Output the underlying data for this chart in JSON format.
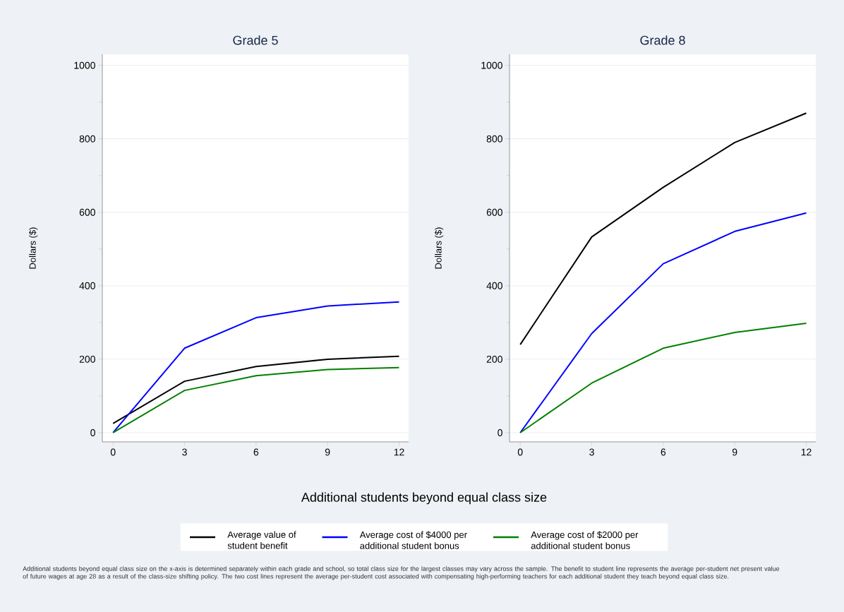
{
  "chart_data": [
    {
      "type": "line",
      "title": "Grade 5",
      "xlabel": "Additional students beyond equal class size",
      "ylabel": "Dollars ($)",
      "x": [
        0,
        3,
        6,
        9,
        12
      ],
      "series": [
        {
          "name": "Average value of student benefit",
          "color": "#000000",
          "values": [
            25,
            140,
            180,
            200,
            208
          ]
        },
        {
          "name": "Average cost of $4000 per additional student bonus",
          "color": "#0000ff",
          "values": [
            0,
            230,
            313,
            345,
            356
          ]
        },
        {
          "name": "Average cost of $2000 per additional student bonus",
          "color": "#008000",
          "values": [
            0,
            115,
            155,
            172,
            177
          ]
        }
      ],
      "xlim": [
        -0.45,
        12.4
      ],
      "ylim": [
        -25,
        1030
      ],
      "xticks": [
        0,
        3,
        6,
        9,
        12
      ],
      "yticks": [
        0,
        {
          "value": 100,
          "label": null
        },
        200,
        {
          "value": 300,
          "label": null
        },
        400,
        {
          "value": 500,
          "label": null
        },
        600,
        {
          "value": 700,
          "label": null
        },
        800,
        {
          "value": 900,
          "label": null
        },
        1000
      ],
      "grid": "y",
      "legend": "bottom",
      "marker": "none",
      "line_style": "solid",
      "annotations": [
        "Additional students beyond equal class size on the x-axis is determined separately within each grade and school, so total class size for the largest classes may vary across the sample. The benefit to student line represents the average per-student net present value of future wages at age 28 as a result of the class-size shifting policy. The two cost lines represent the average per-student cost associated with compensating high-performing teachers for each additional student they teach beyond equal class size."
      ]
    },
    {
      "type": "line",
      "title": "Grade 8",
      "ylabel": "Dollars ($)",
      "x": [
        0,
        3,
        6,
        9,
        12
      ],
      "series": [
        {
          "color": "#000000",
          "values": [
            240,
            533,
            668,
            790,
            870
          ]
        },
        {
          "color": "#0000ff",
          "values": [
            0,
            270,
            460,
            548,
            598
          ]
        },
        {
          "color": "#008000",
          "values": [
            0,
            135,
            230,
            273,
            298
          ]
        }
      ],
      "xlim": [
        -0.45,
        12.4
      ],
      "ylim": [
        -25,
        1030
      ],
      "xticks": [
        0,
        3,
        6,
        9,
        12
      ],
      "yticks": [
        0,
        {
          "value": 100,
          "label": null
        },
        200,
        {
          "value": 300,
          "label": null
        },
        400,
        {
          "value": 500,
          "label": null
        },
        600,
        {
          "value": 700,
          "label": null
        },
        800,
        {
          "value": 900,
          "label": null
        },
        1000
      ],
      "grid": "y",
      "marker": "none",
      "line_style": "solid"
    }
  ]
}
